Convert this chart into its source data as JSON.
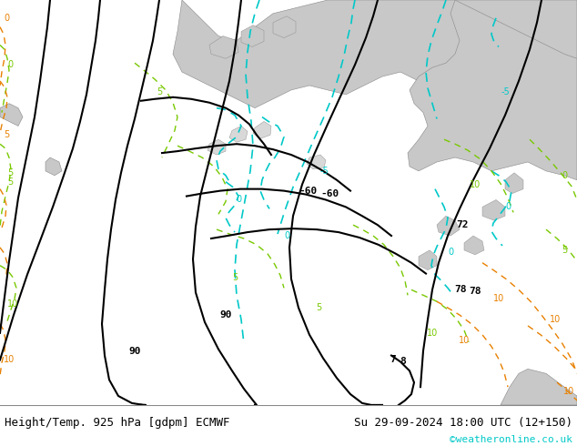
{
  "title_left": "Height/Temp. 925 hPa [gdpm] ECMWF",
  "title_right": "Su 29-09-2024 18:00 UTC (12+150)",
  "credit": "©weatheronline.co.uk",
  "bg_color": "#c8c8c8",
  "land_light_green": "#c8f0a0",
  "land_green": "#b0e890",
  "sea_grey": "#c0c0c0",
  "border_color": "#888888",
  "black_contour_color": "#000000",
  "cyan_contour_color": "#00c8c8",
  "green_contour_color": "#78c800",
  "orange_contour_color": "#e88000",
  "bottom_bar_color": "#e8e8e8",
  "figsize": [
    6.34,
    4.9
  ],
  "dpi": 100
}
